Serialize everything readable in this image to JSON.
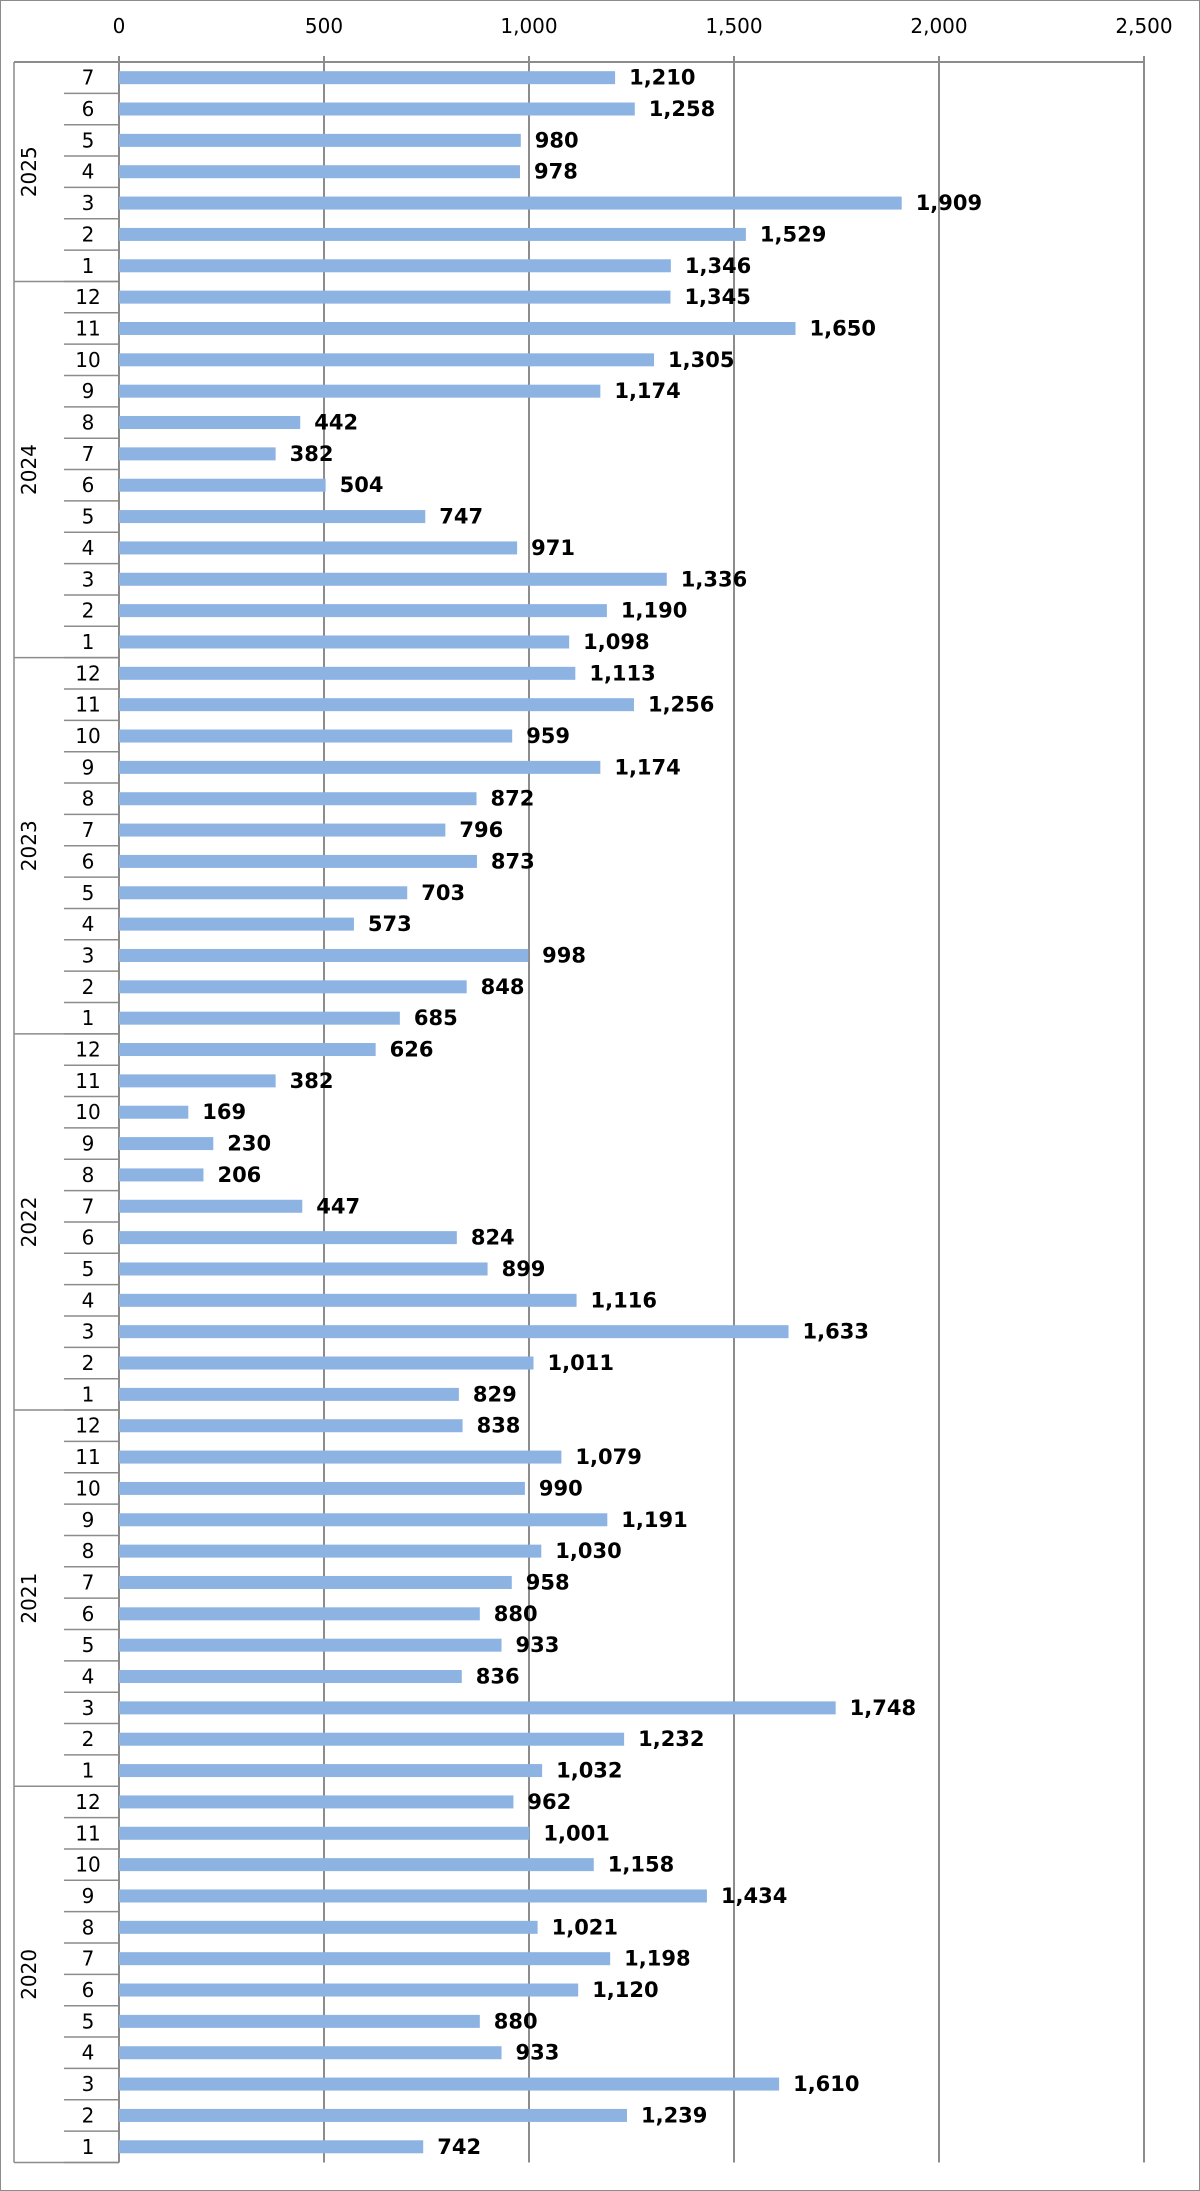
{
  "chart_data": {
    "type": "bar",
    "orientation": "horizontal",
    "xlim": [
      0,
      2500
    ],
    "x_ticks": [
      0,
      500,
      1000,
      1500,
      2000,
      2500
    ],
    "x_tick_labels": [
      "0",
      "500",
      "1,000",
      "1,500",
      "2,000",
      "2,500"
    ],
    "grid": true,
    "bar_color": "#8db3e2",
    "groups": [
      {
        "label": "2025",
        "months": [
          "7",
          "6",
          "5",
          "4",
          "3",
          "2",
          "1"
        ],
        "values": [
          1210,
          1258,
          980,
          978,
          1909,
          1529,
          1346
        ],
        "value_labels": [
          "1,210",
          "1,258",
          "980",
          "978",
          "1,909",
          "1,529",
          "1,346"
        ]
      },
      {
        "label": "2024",
        "months": [
          "12",
          "11",
          "10",
          "9",
          "8",
          "7",
          "6",
          "5",
          "4",
          "3",
          "2",
          "1"
        ],
        "values": [
          1345,
          1650,
          1305,
          1174,
          442,
          382,
          504,
          747,
          971,
          1336,
          1190,
          1098
        ],
        "value_labels": [
          "1,345",
          "1,650",
          "1,305",
          "1,174",
          "442",
          "382",
          "504",
          "747",
          "971",
          "1,336",
          "1,190",
          "1,098"
        ]
      },
      {
        "label": "2023",
        "months": [
          "12",
          "11",
          "10",
          "9",
          "8",
          "7",
          "6",
          "5",
          "4",
          "3",
          "2",
          "1"
        ],
        "values": [
          1113,
          1256,
          959,
          1174,
          872,
          796,
          873,
          703,
          573,
          998,
          848,
          685
        ],
        "value_labels": [
          "1,113",
          "1,256",
          "959",
          "1,174",
          "872",
          "796",
          "873",
          "703",
          "573",
          "998",
          "848",
          "685"
        ]
      },
      {
        "label": "2022",
        "months": [
          "12",
          "11",
          "10",
          "9",
          "8",
          "7",
          "6",
          "5",
          "4",
          "3",
          "2",
          "1"
        ],
        "values": [
          626,
          382,
          169,
          230,
          206,
          447,
          824,
          899,
          1116,
          1633,
          1011,
          829
        ],
        "value_labels": [
          "626",
          "382",
          "169",
          "230",
          "206",
          "447",
          "824",
          "899",
          "1,116",
          "1,633",
          "1,011",
          "829"
        ]
      },
      {
        "label": "2021",
        "months": [
          "12",
          "11",
          "10",
          "9",
          "8",
          "7",
          "6",
          "5",
          "4",
          "3",
          "2",
          "1"
        ],
        "values": [
          838,
          1079,
          990,
          1191,
          1030,
          958,
          880,
          933,
          836,
          1748,
          1232,
          1032
        ],
        "value_labels": [
          "838",
          "1,079",
          "990",
          "1,191",
          "1,030",
          "958",
          "880",
          "933",
          "836",
          "1,748",
          "1,232",
          "1,032"
        ]
      },
      {
        "label": "2020",
        "months": [
          "12",
          "11",
          "10",
          "9",
          "8",
          "7",
          "6",
          "5",
          "4",
          "3",
          "2",
          "1"
        ],
        "values": [
          962,
          1001,
          1158,
          1434,
          1021,
          1198,
          1120,
          880,
          933,
          1610,
          1239,
          742
        ],
        "value_labels": [
          "962",
          "1,001",
          "1,158",
          "1,434",
          "1,021",
          "1,198",
          "1,120",
          "880",
          "933",
          "1,610",
          "1,239",
          "742"
        ]
      }
    ]
  }
}
